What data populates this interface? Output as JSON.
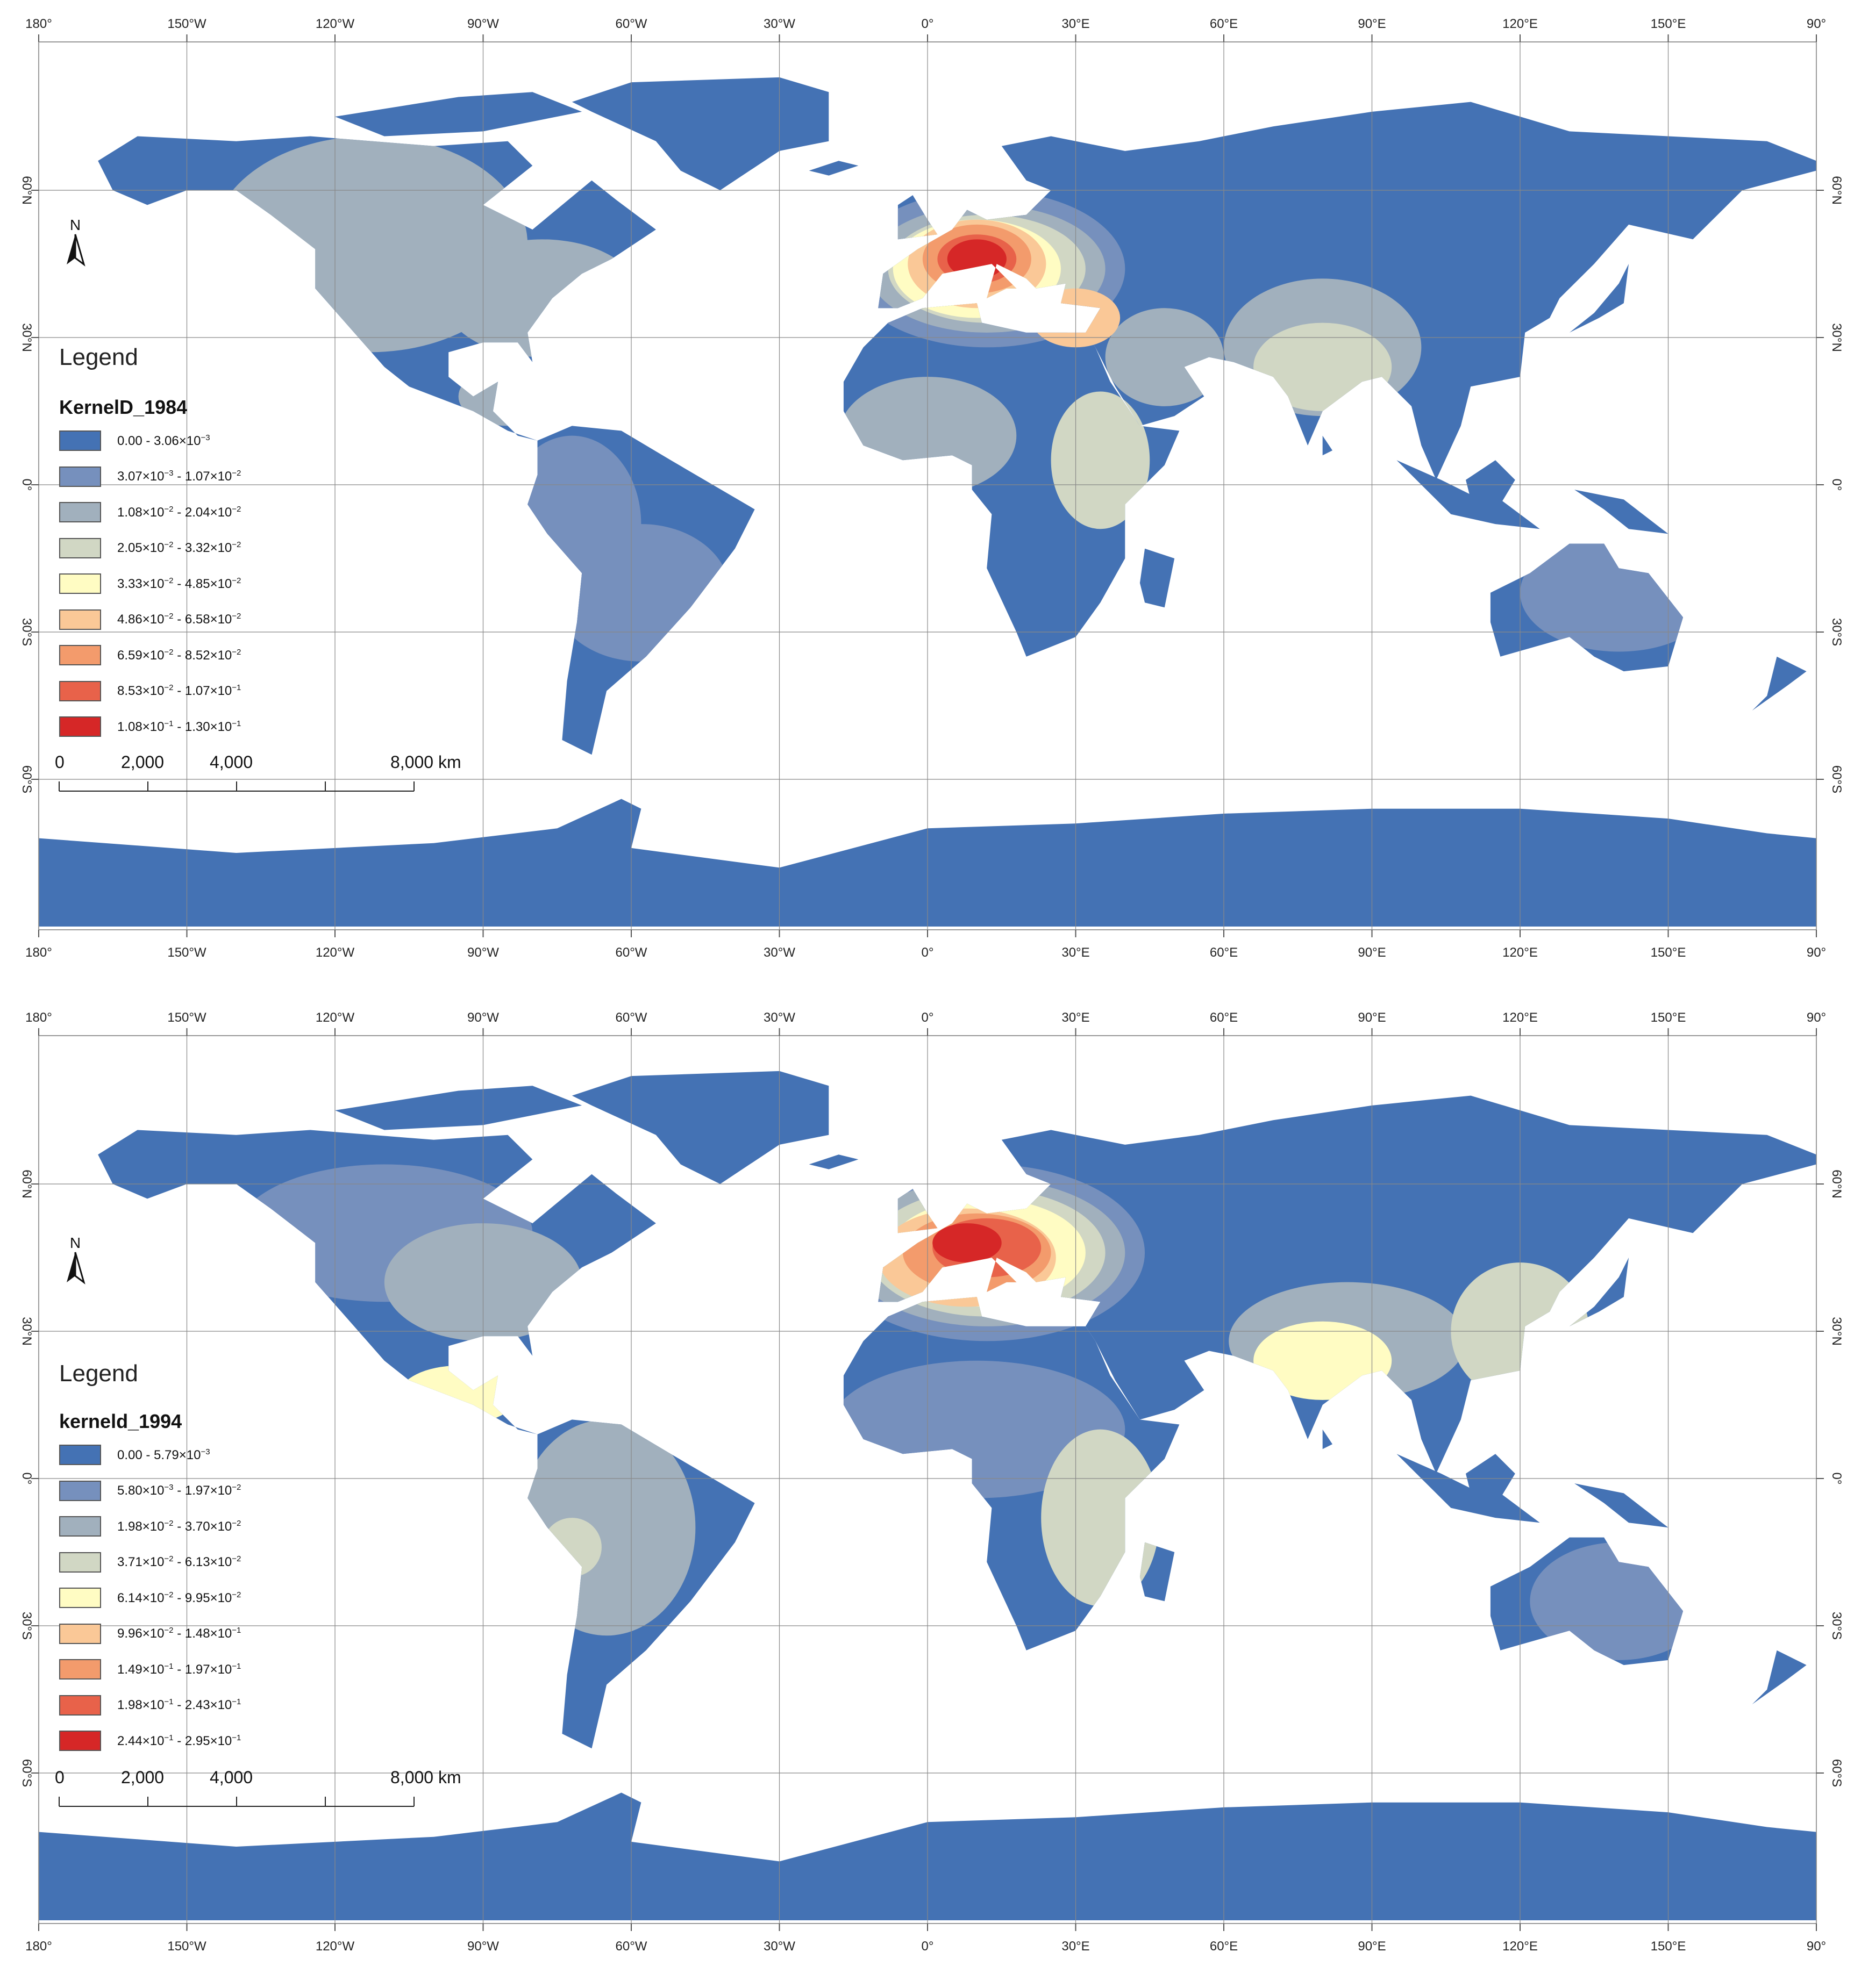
{
  "graticule": {
    "lon_labels": [
      "180°",
      "150°W",
      "120°W",
      "90°W",
      "60°W",
      "30°W",
      "0°",
      "30°E",
      "60°E",
      "90°E",
      "120°E",
      "150°E",
      "90°"
    ],
    "lat_labels": [
      "60°N",
      "30°N",
      "0°",
      "30°S",
      "60°S"
    ]
  },
  "colors": {
    "land": "#4472b4",
    "ocean": "#ffffff",
    "class_colors": [
      "#4472b4",
      "#7690bd",
      "#a1b0bd",
      "#d1d7c4",
      "#fffcc3",
      "#fac897",
      "#f39b6c",
      "#e8624a",
      "#d62727"
    ]
  },
  "maps": [
    {
      "legend_title": "Legend",
      "layer_name": "KernelD_1984",
      "classes": [
        {
          "lo": "0.00",
          "hi_m": "3.06",
          "hi_e": "-3"
        },
        {
          "lo_m": "3.07",
          "lo_e": "-3",
          "hi_m": "1.07",
          "hi_e": "-2"
        },
        {
          "lo_m": "1.08",
          "lo_e": "-2",
          "hi_m": "2.04",
          "hi_e": "-2"
        },
        {
          "lo_m": "2.05",
          "lo_e": "-2",
          "hi_m": "3.32",
          "hi_e": "-2"
        },
        {
          "lo_m": "3.33",
          "lo_e": "-2",
          "hi_m": "4.85",
          "hi_e": "-2"
        },
        {
          "lo_m": "4.86",
          "lo_e": "-2",
          "hi_m": "6.58",
          "hi_e": "-2"
        },
        {
          "lo_m": "6.59",
          "lo_e": "-2",
          "hi_m": "8.52",
          "hi_e": "-2"
        },
        {
          "lo_m": "8.53",
          "lo_e": "-2",
          "hi_m": "1.07",
          "hi_e": "-1"
        },
        {
          "lo_m": "1.08",
          "lo_e": "-1",
          "hi_m": "1.30",
          "hi_e": "-1"
        }
      ],
      "scale": {
        "ticks": [
          "0",
          "2,000",
          "4,000",
          "8,000 km"
        ]
      },
      "north_label": "N"
    },
    {
      "legend_title": "Legend",
      "layer_name": "kerneld_1994",
      "classes": [
        {
          "lo": "0.00",
          "hi_m": "5.79",
          "hi_e": "-3"
        },
        {
          "lo_m": "5.80",
          "lo_e": "-3",
          "hi_m": "1.97",
          "hi_e": "-2"
        },
        {
          "lo_m": "1.98",
          "lo_e": "-2",
          "hi_m": "3.70",
          "hi_e": "-2"
        },
        {
          "lo_m": "3.71",
          "lo_e": "-2",
          "hi_m": "6.13",
          "hi_e": "-2"
        },
        {
          "lo_m": "6.14",
          "lo_e": "-2",
          "hi_m": "9.95",
          "hi_e": "-2"
        },
        {
          "lo_m": "9.96",
          "lo_e": "-2",
          "hi_m": "1.48",
          "hi_e": "-1"
        },
        {
          "lo_m": "1.49",
          "lo_e": "-1",
          "hi_m": "1.97",
          "hi_e": "-1"
        },
        {
          "lo_m": "1.98",
          "lo_e": "-1",
          "hi_m": "2.43",
          "hi_e": "-1"
        },
        {
          "lo_m": "2.44",
          "lo_e": "-1",
          "hi_m": "2.95",
          "hi_e": "-1"
        }
      ],
      "scale": {
        "ticks": [
          "0",
          "2,000",
          "4,000",
          "8,000 km"
        ]
      },
      "north_label": "N"
    }
  ]
}
